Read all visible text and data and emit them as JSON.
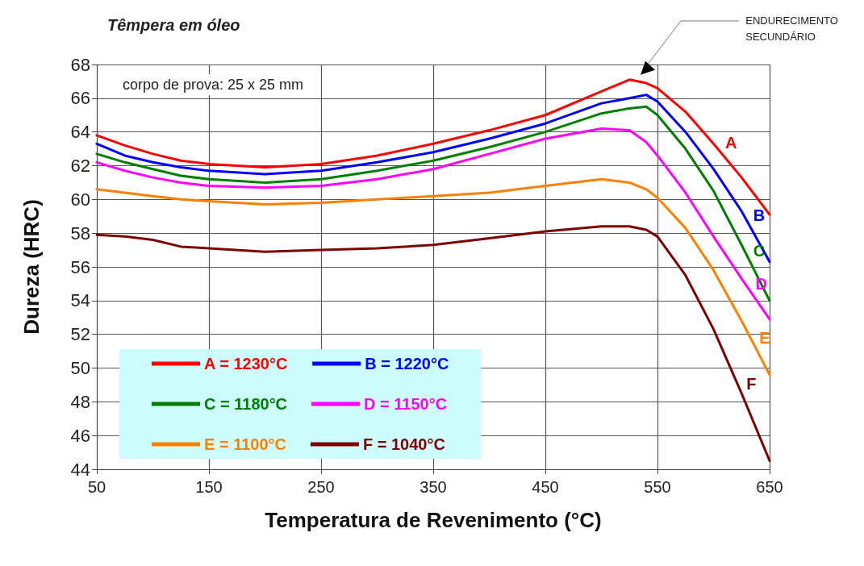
{
  "chart_data": {
    "type": "line",
    "title": "Têmpera em óleo",
    "xlabel": "Temperatura de Revenimento (°C)",
    "ylabel": "Dureza (HRC)",
    "xlim": [
      50,
      650
    ],
    "xticks": [
      50,
      150,
      250,
      350,
      450,
      550,
      650
    ],
    "ylim": [
      44,
      68
    ],
    "yticks": [
      44,
      46,
      48,
      50,
      52,
      54,
      56,
      58,
      60,
      62,
      64,
      66,
      68
    ],
    "grid": true,
    "legend": "bottom left",
    "marker": "none",
    "line_style": "solid",
    "x": [
      50,
      75,
      100,
      125,
      150,
      200,
      250,
      300,
      350,
      400,
      450,
      500,
      525,
      540,
      550,
      575,
      600,
      625,
      650
    ],
    "series": [
      {
        "name": "A = 1230°C",
        "color": "#ff0000",
        "values": [
          63.8,
          63.2,
          62.7,
          62.3,
          62.1,
          61.9,
          62.1,
          62.6,
          63.3,
          64.1,
          65.0,
          66.4,
          67.1,
          66.9,
          66.6,
          65.2,
          63.3,
          61.3,
          59.1
        ]
      },
      {
        "name": "B = 1220°C",
        "color": "#0000ff",
        "values": [
          63.3,
          62.6,
          62.2,
          61.9,
          61.7,
          61.5,
          61.7,
          62.2,
          62.8,
          63.6,
          64.5,
          65.7,
          66.0,
          66.2,
          65.8,
          64.0,
          61.8,
          59.3,
          56.3
        ]
      },
      {
        "name": "C = 1180°C",
        "color": "#008000",
        "values": [
          62.7,
          62.2,
          61.8,
          61.4,
          61.2,
          61.0,
          61.2,
          61.7,
          62.3,
          63.1,
          64.0,
          65.1,
          65.4,
          65.5,
          65.0,
          63.0,
          60.5,
          57.3,
          54.0
        ]
      },
      {
        "name": "D = 1150°C",
        "color": "#ff00ff",
        "values": [
          62.2,
          61.7,
          61.3,
          61.0,
          60.8,
          60.7,
          60.8,
          61.2,
          61.8,
          62.7,
          63.6,
          64.2,
          64.1,
          63.4,
          62.6,
          60.4,
          57.8,
          55.3,
          52.9
        ]
      },
      {
        "name": "E = 1100°C",
        "color": "#ff7f00",
        "values": [
          60.6,
          60.4,
          60.2,
          60.0,
          59.9,
          59.7,
          59.8,
          60.0,
          60.2,
          60.4,
          60.8,
          61.2,
          61.0,
          60.6,
          60.1,
          58.3,
          55.8,
          52.8,
          49.6
        ]
      },
      {
        "name": "F = 1040°C",
        "color": "#7f0000",
        "values": [
          57.9,
          57.8,
          57.6,
          57.2,
          57.1,
          56.9,
          57.0,
          57.1,
          57.3,
          57.7,
          58.1,
          58.4,
          58.4,
          58.2,
          57.8,
          55.5,
          52.3,
          48.5,
          44.5
        ]
      }
    ],
    "annotations": [
      "corpo de prova: 25 x 25 mm",
      "ENDURECIMENTO\nSECUNDÁRIO",
      {
        "text": "A",
        "x": 607,
        "y": 62.8
      },
      {
        "text": "B",
        "x": 632,
        "y": 58.5
      },
      {
        "text": "C",
        "x": 632,
        "y": 56.4
      },
      {
        "text": "D",
        "x": 634,
        "y": 54.4
      },
      {
        "text": "E",
        "x": 637,
        "y": 51.2
      },
      {
        "text": "F",
        "x": 625,
        "y": 48.5
      }
    ]
  }
}
